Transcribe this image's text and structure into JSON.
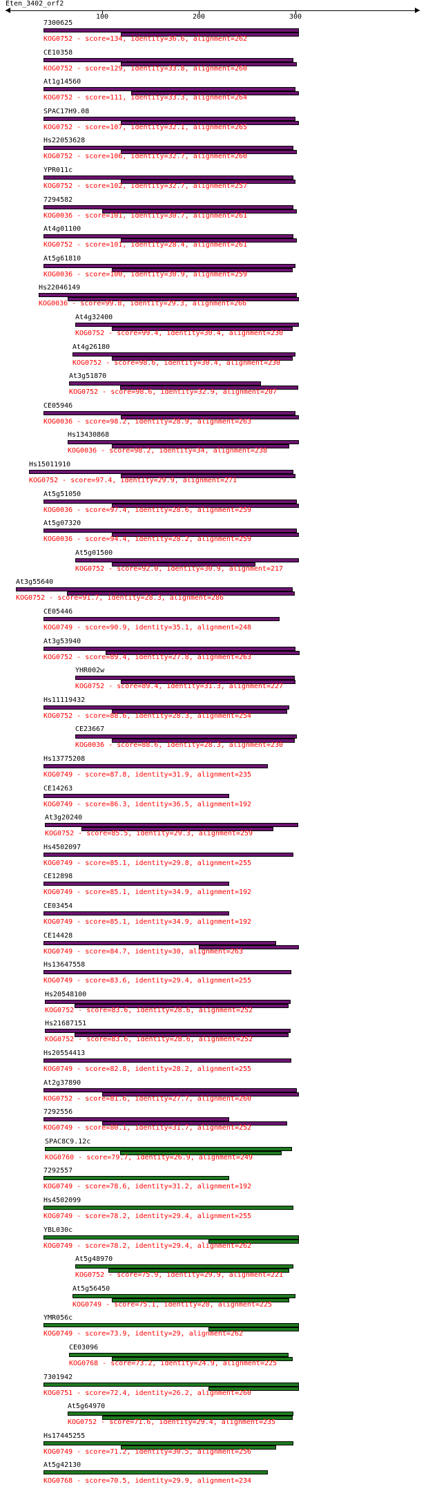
{
  "query": "Eten_3402_orf2",
  "axis": {
    "ticks": [
      100,
      200,
      300
    ]
  },
  "colors": {
    "purple": "#6c1470",
    "green": "#1f7a1f",
    "info_text": "#ff0000"
  },
  "hits": [
    {
      "name": "7300625",
      "kog": "KOG0752",
      "score": "134",
      "identity": "36.6",
      "alignment": "262",
      "color": "purple",
      "start": 39,
      "bars": [
        [
          39,
          302
        ],
        [
          119,
          302
        ]
      ]
    },
    {
      "name": "CE10358",
      "kog": "KOG0752",
      "score": "129",
      "identity": "33.8",
      "alignment": "260",
      "color": "purple",
      "start": 39,
      "bars": [
        [
          39,
          296
        ],
        [
          119,
          300
        ]
      ]
    },
    {
      "name": "At1g14560",
      "kog": "KOG0752",
      "score": "111",
      "identity": "33.3",
      "alignment": "264",
      "color": "purple",
      "start": 39,
      "bars": [
        [
          39,
          298
        ],
        [
          130,
          302
        ]
      ]
    },
    {
      "name": "SPAC17H9.08",
      "kog": "KOG0752",
      "score": "107",
      "identity": "32.1",
      "alignment": "265",
      "color": "purple",
      "start": 39,
      "bars": [
        [
          39,
          298
        ],
        [
          119,
          302
        ]
      ]
    },
    {
      "name": "Hs22053628",
      "kog": "KOG0752",
      "score": "106",
      "identity": "32.7",
      "alignment": "260",
      "color": "purple",
      "start": 39,
      "bars": [
        [
          39,
          296
        ],
        [
          119,
          300
        ]
      ]
    },
    {
      "name": "YPR011c",
      "kog": "KOG0752",
      "score": "102",
      "identity": "32.7",
      "alignment": "257",
      "color": "purple",
      "start": 39,
      "bars": [
        [
          39,
          296
        ],
        [
          119,
          298
        ]
      ]
    },
    {
      "name": "7294582",
      "kog": "KOG0036",
      "score": "101",
      "identity": "30.7",
      "alignment": "261",
      "color": "purple",
      "start": 39,
      "bars": [
        [
          39,
          296
        ],
        [
          100,
          300
        ]
      ]
    },
    {
      "name": "At4g01100",
      "kog": "KOG0752",
      "score": "101",
      "identity": "28.4",
      "alignment": "261",
      "color": "purple",
      "start": 39,
      "bars": [
        [
          39,
          296
        ],
        [
          119,
          300
        ]
      ]
    },
    {
      "name": "At5g61810",
      "kog": "KOG0036",
      "score": "100",
      "identity": "30.9",
      "alignment": "259",
      "color": "purple",
      "start": 39,
      "bars": [
        [
          39,
          298
        ],
        [
          110,
          296
        ]
      ]
    },
    {
      "name": "Hs22046149",
      "kog": "KOG0036",
      "score": "99.8",
      "identity": "29.3",
      "alignment": "266",
      "color": "purple",
      "start": 34,
      "bars": [
        [
          34,
          300
        ],
        [
          64,
          302
        ]
      ]
    },
    {
      "name": "At4g32400",
      "kog": "KOG0752",
      "score": "99.4",
      "identity": "30.4",
      "alignment": "230",
      "color": "purple",
      "start": 72,
      "bars": [
        [
          72,
          302
        ],
        [
          110,
          296
        ]
      ]
    },
    {
      "name": "At4g26180",
      "kog": "KOG0752",
      "score": "98.6",
      "identity": "30.4",
      "alignment": "230",
      "color": "purple",
      "start": 69,
      "bars": [
        [
          69,
          298
        ],
        [
          110,
          296
        ]
      ]
    },
    {
      "name": "At3g51870",
      "kog": "KOG0752",
      "score": "98.6",
      "identity": "32.9",
      "alignment": "207",
      "color": "purple",
      "start": 66,
      "bars": [
        [
          66,
          263
        ],
        [
          119,
          302
        ]
      ]
    },
    {
      "name": "CE05946",
      "kog": "KOG0036",
      "score": "98.2",
      "identity": "28.9",
      "alignment": "263",
      "color": "purple",
      "start": 39,
      "bars": [
        [
          39,
          298
        ],
        [
          119,
          302
        ]
      ]
    },
    {
      "name": "Hs13430868",
      "kog": "KOG0036",
      "score": "98.2",
      "identity": "34",
      "alignment": "238",
      "color": "purple",
      "start": 64,
      "bars": [
        [
          64,
          302
        ],
        [
          110,
          292
        ]
      ]
    },
    {
      "name": "Hs15011910",
      "kog": "KOG0752",
      "score": "97.4",
      "identity": "29.9",
      "alignment": "271",
      "color": "purple",
      "start": 24,
      "bars": [
        [
          24,
          296
        ],
        [
          119,
          298
        ]
      ]
    },
    {
      "name": "At5g51050",
      "kog": "KOG0036",
      "score": "97.4",
      "identity": "28.6",
      "alignment": "259",
      "color": "purple",
      "start": 39,
      "bars": [
        [
          39,
          300
        ],
        [
          110,
          302
        ]
      ]
    },
    {
      "name": "At5g07320",
      "kog": "KOG0036",
      "score": "94.4",
      "identity": "28.2",
      "alignment": "259",
      "color": "purple",
      "start": 39,
      "bars": [
        [
          39,
          300
        ],
        [
          110,
          302
        ]
      ]
    },
    {
      "name": "At5g01500",
      "kog": "KOG0752",
      "score": "92.0",
      "identity": "30.9",
      "alignment": "217",
      "color": "purple",
      "start": 72,
      "bars": [
        [
          72,
          302
        ],
        [
          110,
          257
        ]
      ]
    },
    {
      "name": "At3g55640",
      "kog": "KOG0752",
      "score": "91.7",
      "identity": "28.3",
      "alignment": "286",
      "color": "purple",
      "start": 11,
      "bars": [
        [
          11,
          296
        ],
        [
          64,
          298
        ]
      ]
    },
    {
      "name": "CE05446",
      "kog": "KOG0749",
      "score": "90.9",
      "identity": "35.1",
      "alignment": "248",
      "color": "purple",
      "start": 39,
      "bars": [
        [
          39,
          282
        ]
      ]
    },
    {
      "name": "At3g53940",
      "kog": "KOG0752",
      "score": "89.4",
      "identity": "27.8",
      "alignment": "263",
      "color": "purple",
      "start": 39,
      "bars": [
        [
          39,
          298
        ],
        [
          103,
          302
        ]
      ]
    },
    {
      "name": "YHR002w",
      "kog": "KOG0752",
      "score": "89.4",
      "identity": "31.3",
      "alignment": "227",
      "color": "purple",
      "start": 72,
      "bars": [
        [
          72,
          298
        ],
        [
          119,
          298
        ]
      ]
    },
    {
      "name": "Hs11119432",
      "kog": "KOG0752",
      "score": "88.6",
      "identity": "28.3",
      "alignment": "254",
      "color": "purple",
      "start": 39,
      "bars": [
        [
          39,
          292
        ],
        [
          110,
          290
        ]
      ]
    },
    {
      "name": "CE23667",
      "kog": "KOG0036",
      "score": "88.6",
      "identity": "28.3",
      "alignment": "230",
      "color": "purple",
      "start": 72,
      "bars": [
        [
          72,
          300
        ],
        [
          110,
          298
        ]
      ]
    },
    {
      "name": "Hs13775208",
      "kog": "KOG0749",
      "score": "87.8",
      "identity": "31.9",
      "alignment": "235",
      "color": "purple",
      "start": 39,
      "bars": [
        [
          39,
          270
        ]
      ]
    },
    {
      "name": "CE14263",
      "kog": "KOG0749",
      "score": "86.3",
      "identity": "36.5",
      "alignment": "192",
      "color": "purple",
      "start": 39,
      "bars": [
        [
          39,
          230
        ]
      ]
    },
    {
      "name": "At3g20240",
      "kog": "KOG0752",
      "score": "85.5",
      "identity": "29.3",
      "alignment": "259",
      "color": "purple",
      "start": 41,
      "bars": [
        [
          41,
          302
        ],
        [
          79,
          276
        ]
      ]
    },
    {
      "name": "Hs4502097",
      "kog": "KOG0749",
      "score": "85.1",
      "identity": "29.8",
      "alignment": "255",
      "color": "purple",
      "start": 39,
      "bars": [
        [
          39,
          296
        ]
      ]
    },
    {
      "name": "CE12898",
      "kog": "KOG0749",
      "score": "85.1",
      "identity": "34.9",
      "alignment": "192",
      "color": "purple",
      "start": 39,
      "bars": [
        [
          39,
          230
        ]
      ]
    },
    {
      "name": "CE03454",
      "kog": "KOG0749",
      "score": "85.1",
      "identity": "34.9",
      "alignment": "192",
      "color": "purple",
      "start": 39,
      "bars": [
        [
          39,
          230
        ]
      ]
    },
    {
      "name": "CE14428",
      "kog": "KOG0749",
      "score": "84.7",
      "identity": "30",
      "alignment": "263",
      "color": "purple",
      "start": 39,
      "bars": [
        [
          39,
          278
        ],
        [
          200,
          302
        ]
      ]
    },
    {
      "name": "Hs13647558",
      "kog": "KOG0749",
      "score": "83.6",
      "identity": "29.4",
      "alignment": "255",
      "color": "purple",
      "start": 39,
      "bars": [
        [
          39,
          294
        ]
      ]
    },
    {
      "name": "Hs20548100",
      "kog": "KOG0752",
      "score": "83.6",
      "identity": "28.6",
      "alignment": "252",
      "color": "purple",
      "start": 41,
      "bars": [
        [
          41,
          294
        ],
        [
          72,
          292
        ]
      ]
    },
    {
      "name": "Hs21687151",
      "kog": "KOG0752",
      "score": "83.6",
      "identity": "28.6",
      "alignment": "252",
      "color": "purple",
      "start": 41,
      "bars": [
        [
          41,
          294
        ],
        [
          72,
          292
        ]
      ]
    },
    {
      "name": "Hs20554413",
      "kog": "KOG0749",
      "score": "82.8",
      "identity": "28.2",
      "alignment": "255",
      "color": "purple",
      "start": 39,
      "bars": [
        [
          39,
          294
        ]
      ]
    },
    {
      "name": "At2g37890",
      "kog": "KOG0752",
      "score": "81.6",
      "identity": "27.7",
      "alignment": "260",
      "color": "purple",
      "start": 39,
      "bars": [
        [
          39,
          300
        ],
        [
          100,
          302
        ]
      ]
    },
    {
      "name": "7292556",
      "kog": "KOG0749",
      "score": "80.1",
      "identity": "31.7",
      "alignment": "252",
      "color": "purple",
      "start": 39,
      "bars": [
        [
          39,
          230
        ],
        [
          100,
          290
        ]
      ]
    },
    {
      "name": "SPAC8C9.12c",
      "kog": "KOG0760",
      "score": "79.7",
      "identity": "26.9",
      "alignment": "249",
      "color": "green",
      "start": 41,
      "bars": [
        [
          41,
          295
        ],
        [
          119,
          285
        ]
      ]
    },
    {
      "name": "7292557",
      "kog": "KOG0749",
      "score": "78.6",
      "identity": "31.2",
      "alignment": "192",
      "color": "green",
      "start": 39,
      "bars": [
        [
          39,
          230
        ]
      ]
    },
    {
      "name": "Hs4502099",
      "kog": "KOG0749",
      "score": "78.2",
      "identity": "29.4",
      "alignment": "255",
      "color": "green",
      "start": 39,
      "bars": [
        [
          39,
          296
        ]
      ]
    },
    {
      "name": "YBL030c",
      "kog": "KOG0749",
      "score": "78.2",
      "identity": "29.4",
      "alignment": "262",
      "color": "green",
      "start": 39,
      "bars": [
        [
          39,
          302
        ],
        [
          210,
          302
        ]
      ]
    },
    {
      "name": "At5g48970",
      "kog": "KOG0752",
      "score": "75.9",
      "identity": "29.9",
      "alignment": "221",
      "color": "green",
      "start": 72,
      "bars": [
        [
          72,
          296
        ],
        [
          106,
          292
        ]
      ]
    },
    {
      "name": "At5g56450",
      "kog": "KOG0749",
      "score": "75.1",
      "identity": "28",
      "alignment": "225",
      "color": "green",
      "start": 69,
      "bars": [
        [
          69,
          298
        ],
        [
          110,
          292
        ]
      ]
    },
    {
      "name": "YMR056c",
      "kog": "KOG0749",
      "score": "73.9",
      "identity": "29",
      "alignment": "262",
      "color": "green",
      "start": 39,
      "bars": [
        [
          39,
          302
        ],
        [
          210,
          302
        ]
      ]
    },
    {
      "name": "CE03096",
      "kog": "KOG0768",
      "score": "73.2",
      "identity": "24.9",
      "alignment": "225",
      "color": "green",
      "start": 66,
      "bars": [
        [
          66,
          292
        ],
        [
          110,
          296
        ]
      ]
    },
    {
      "name": "7301942",
      "kog": "KOG0751",
      "score": "72.4",
      "identity": "26.2",
      "alignment": "260",
      "color": "green",
      "start": 39,
      "bars": [
        [
          39,
          302
        ],
        [
          210,
          302
        ]
      ]
    },
    {
      "name": "At5g64970",
      "kog": "KOG0752",
      "score": "71.6",
      "identity": "29.4",
      "alignment": "235",
      "color": "green",
      "start": 64,
      "bars": [
        [
          64,
          296
        ],
        [
          100,
          296
        ]
      ]
    },
    {
      "name": "Hs17445255",
      "kog": "KOG0749",
      "score": "71.2",
      "identity": "30.5",
      "alignment": "256",
      "color": "green",
      "start": 39,
      "bars": [
        [
          39,
          296
        ],
        [
          119,
          278
        ]
      ]
    },
    {
      "name": "At5g42130",
      "kog": "KOG0768",
      "score": "70.5",
      "identity": "29.9",
      "alignment": "234",
      "color": "green",
      "start": 39,
      "bars": [
        [
          39,
          270
        ]
      ]
    }
  ]
}
